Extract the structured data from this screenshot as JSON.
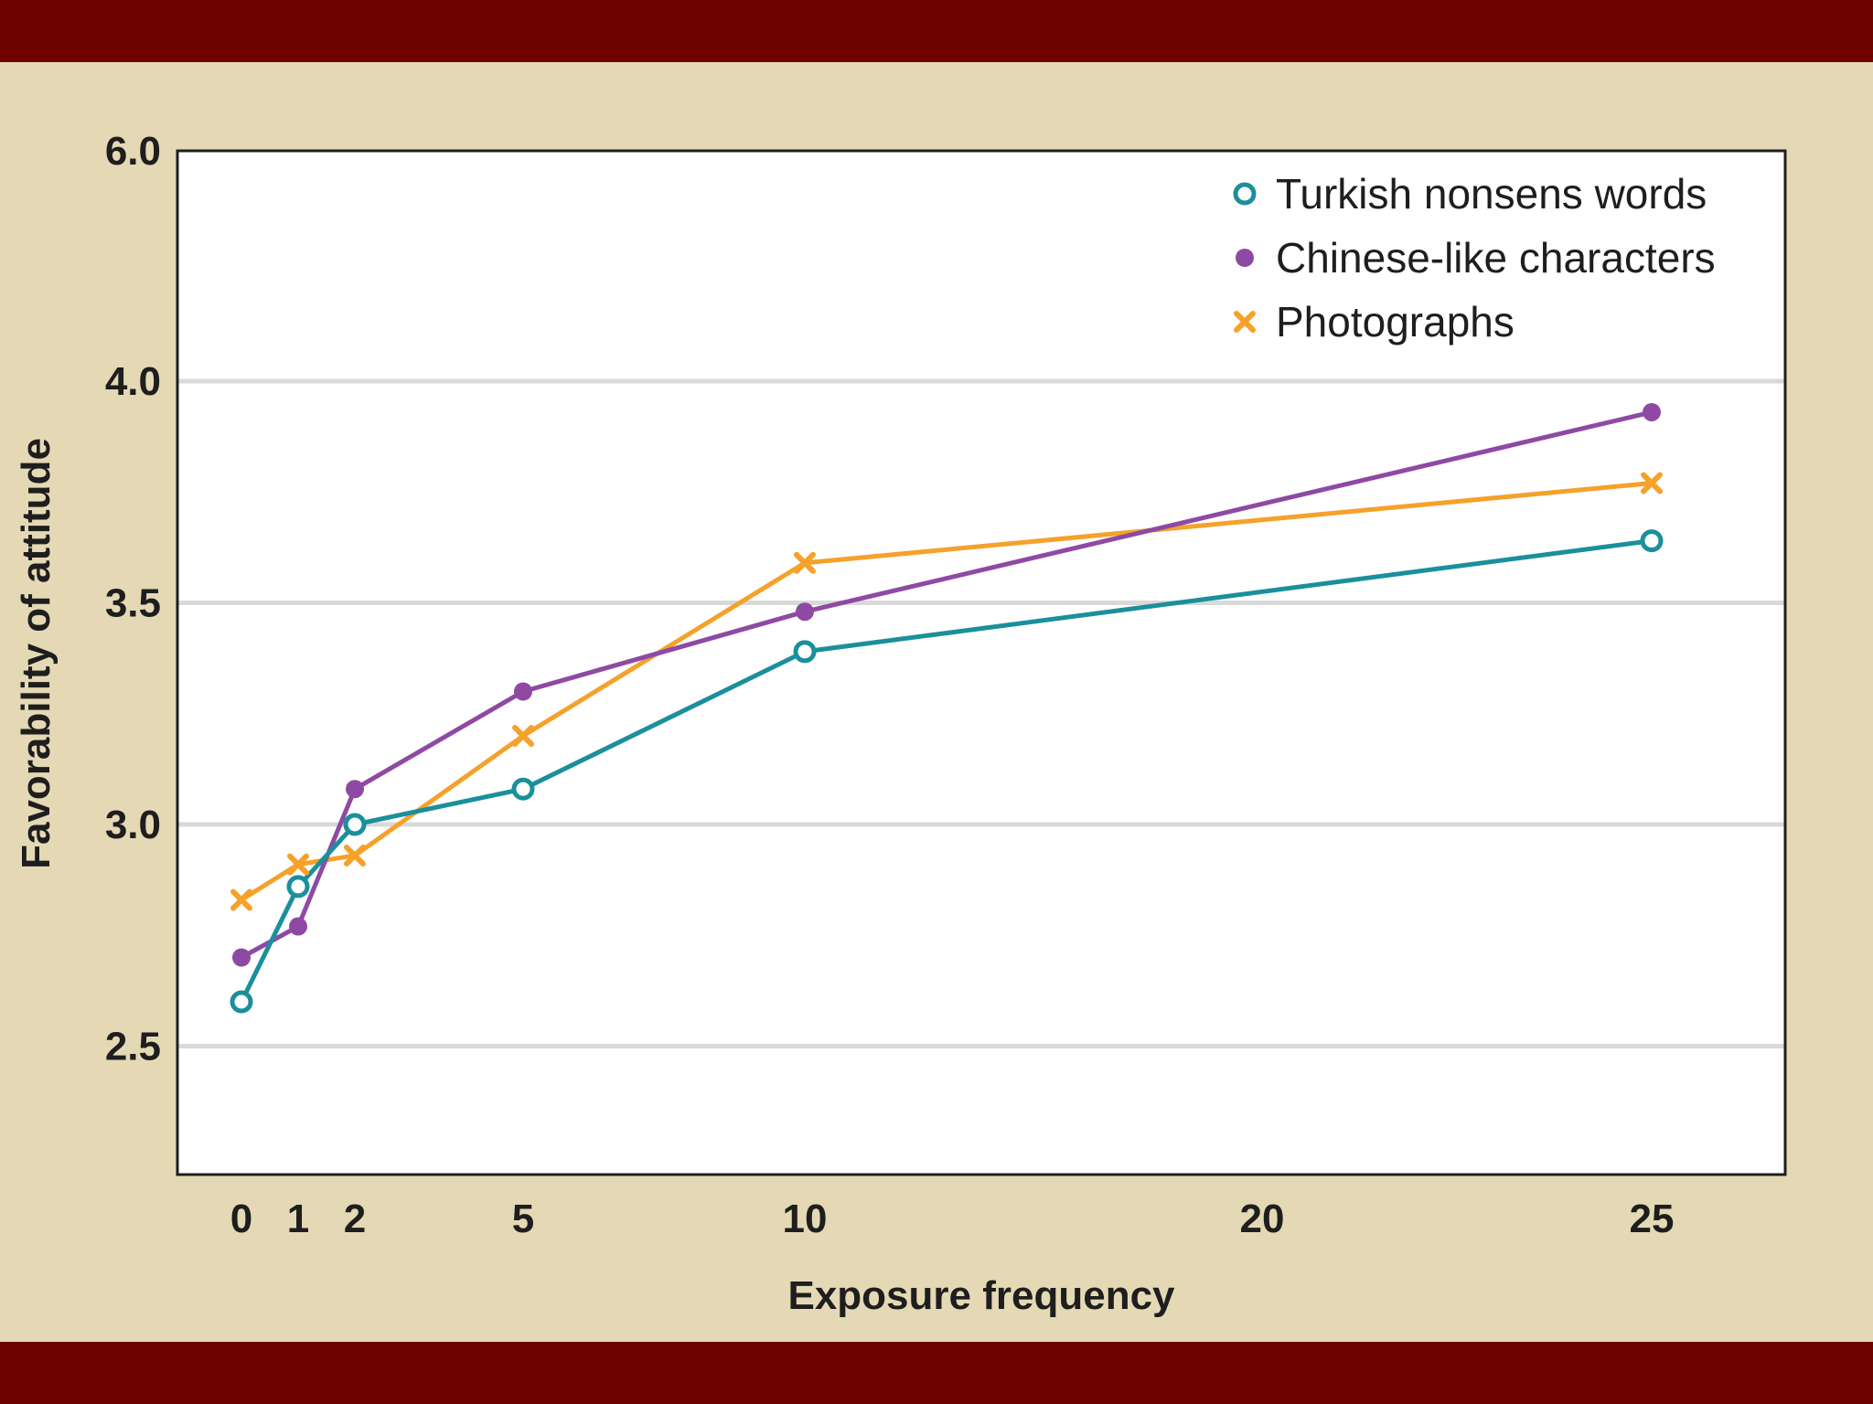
{
  "chart_data": {
    "type": "line",
    "title": "",
    "xlabel": "Exposure frequency",
    "ylabel": "Favorability of attitude",
    "x_ticks": [
      0,
      1,
      2,
      5,
      10,
      20,
      25
    ],
    "x_tick_labels": [
      "0",
      "1",
      "2",
      "5",
      "10",
      "20",
      "25"
    ],
    "y_ticks": [
      2.5,
      3.0,
      3.5,
      4.0,
      6.0
    ],
    "y_tick_labels": [
      "2.5",
      "3.0",
      "3.5",
      "4.0",
      "6.0"
    ],
    "ylim": [
      2.2,
      6.0
    ],
    "y_scale": "broken: regular between 2.5 and 4.0, compressed above 4.0 up to 6.0",
    "grid": "horizontal at 2.5, 3.0, 3.5, 4.0",
    "legend_position": "top-right",
    "x": [
      0,
      1,
      2,
      5,
      10,
      25
    ],
    "series": [
      {
        "name": "Turkish nonsens words",
        "color": "#1b8f9c",
        "marker": "open-circle",
        "values": [
          2.6,
          2.86,
          3.0,
          3.08,
          3.39,
          3.64
        ]
      },
      {
        "name": "Chinese-like characters",
        "color": "#8e4aa3",
        "marker": "filled-circle",
        "values": [
          2.7,
          2.77,
          3.08,
          3.3,
          3.48,
          3.93
        ]
      },
      {
        "name": "Photographs",
        "color": "#f5a12a",
        "marker": "x",
        "values": [
          2.83,
          2.91,
          2.93,
          3.2,
          3.59,
          3.77
        ]
      }
    ]
  }
}
